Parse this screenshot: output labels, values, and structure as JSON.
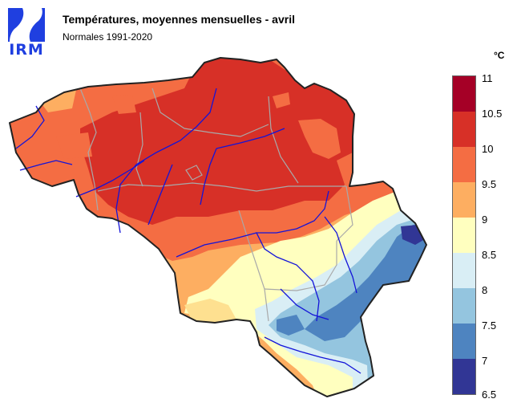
{
  "header": {
    "title": "Températures, moyennes mensuelles - avril",
    "subtitle": "Normales 1991-2020",
    "logo_text": "IRM"
  },
  "legend": {
    "unit": "°C",
    "ticks": [
      "11",
      "10.5",
      "10",
      "9.5",
      "9",
      "8.5",
      "8",
      "7.5",
      "7",
      "6.5"
    ],
    "colors": [
      "#a50026",
      "#d73027",
      "#f46d43",
      "#fdae61",
      "#fee090",
      "#ffffbf",
      "#d9eef5",
      "#94c5df",
      "#4e84c0",
      "#313695"
    ]
  },
  "colors": {
    "border": "#222222",
    "rivers": "#1414d8",
    "provinces": "#a9a9a9",
    "logo": "#1f3fe0"
  }
}
